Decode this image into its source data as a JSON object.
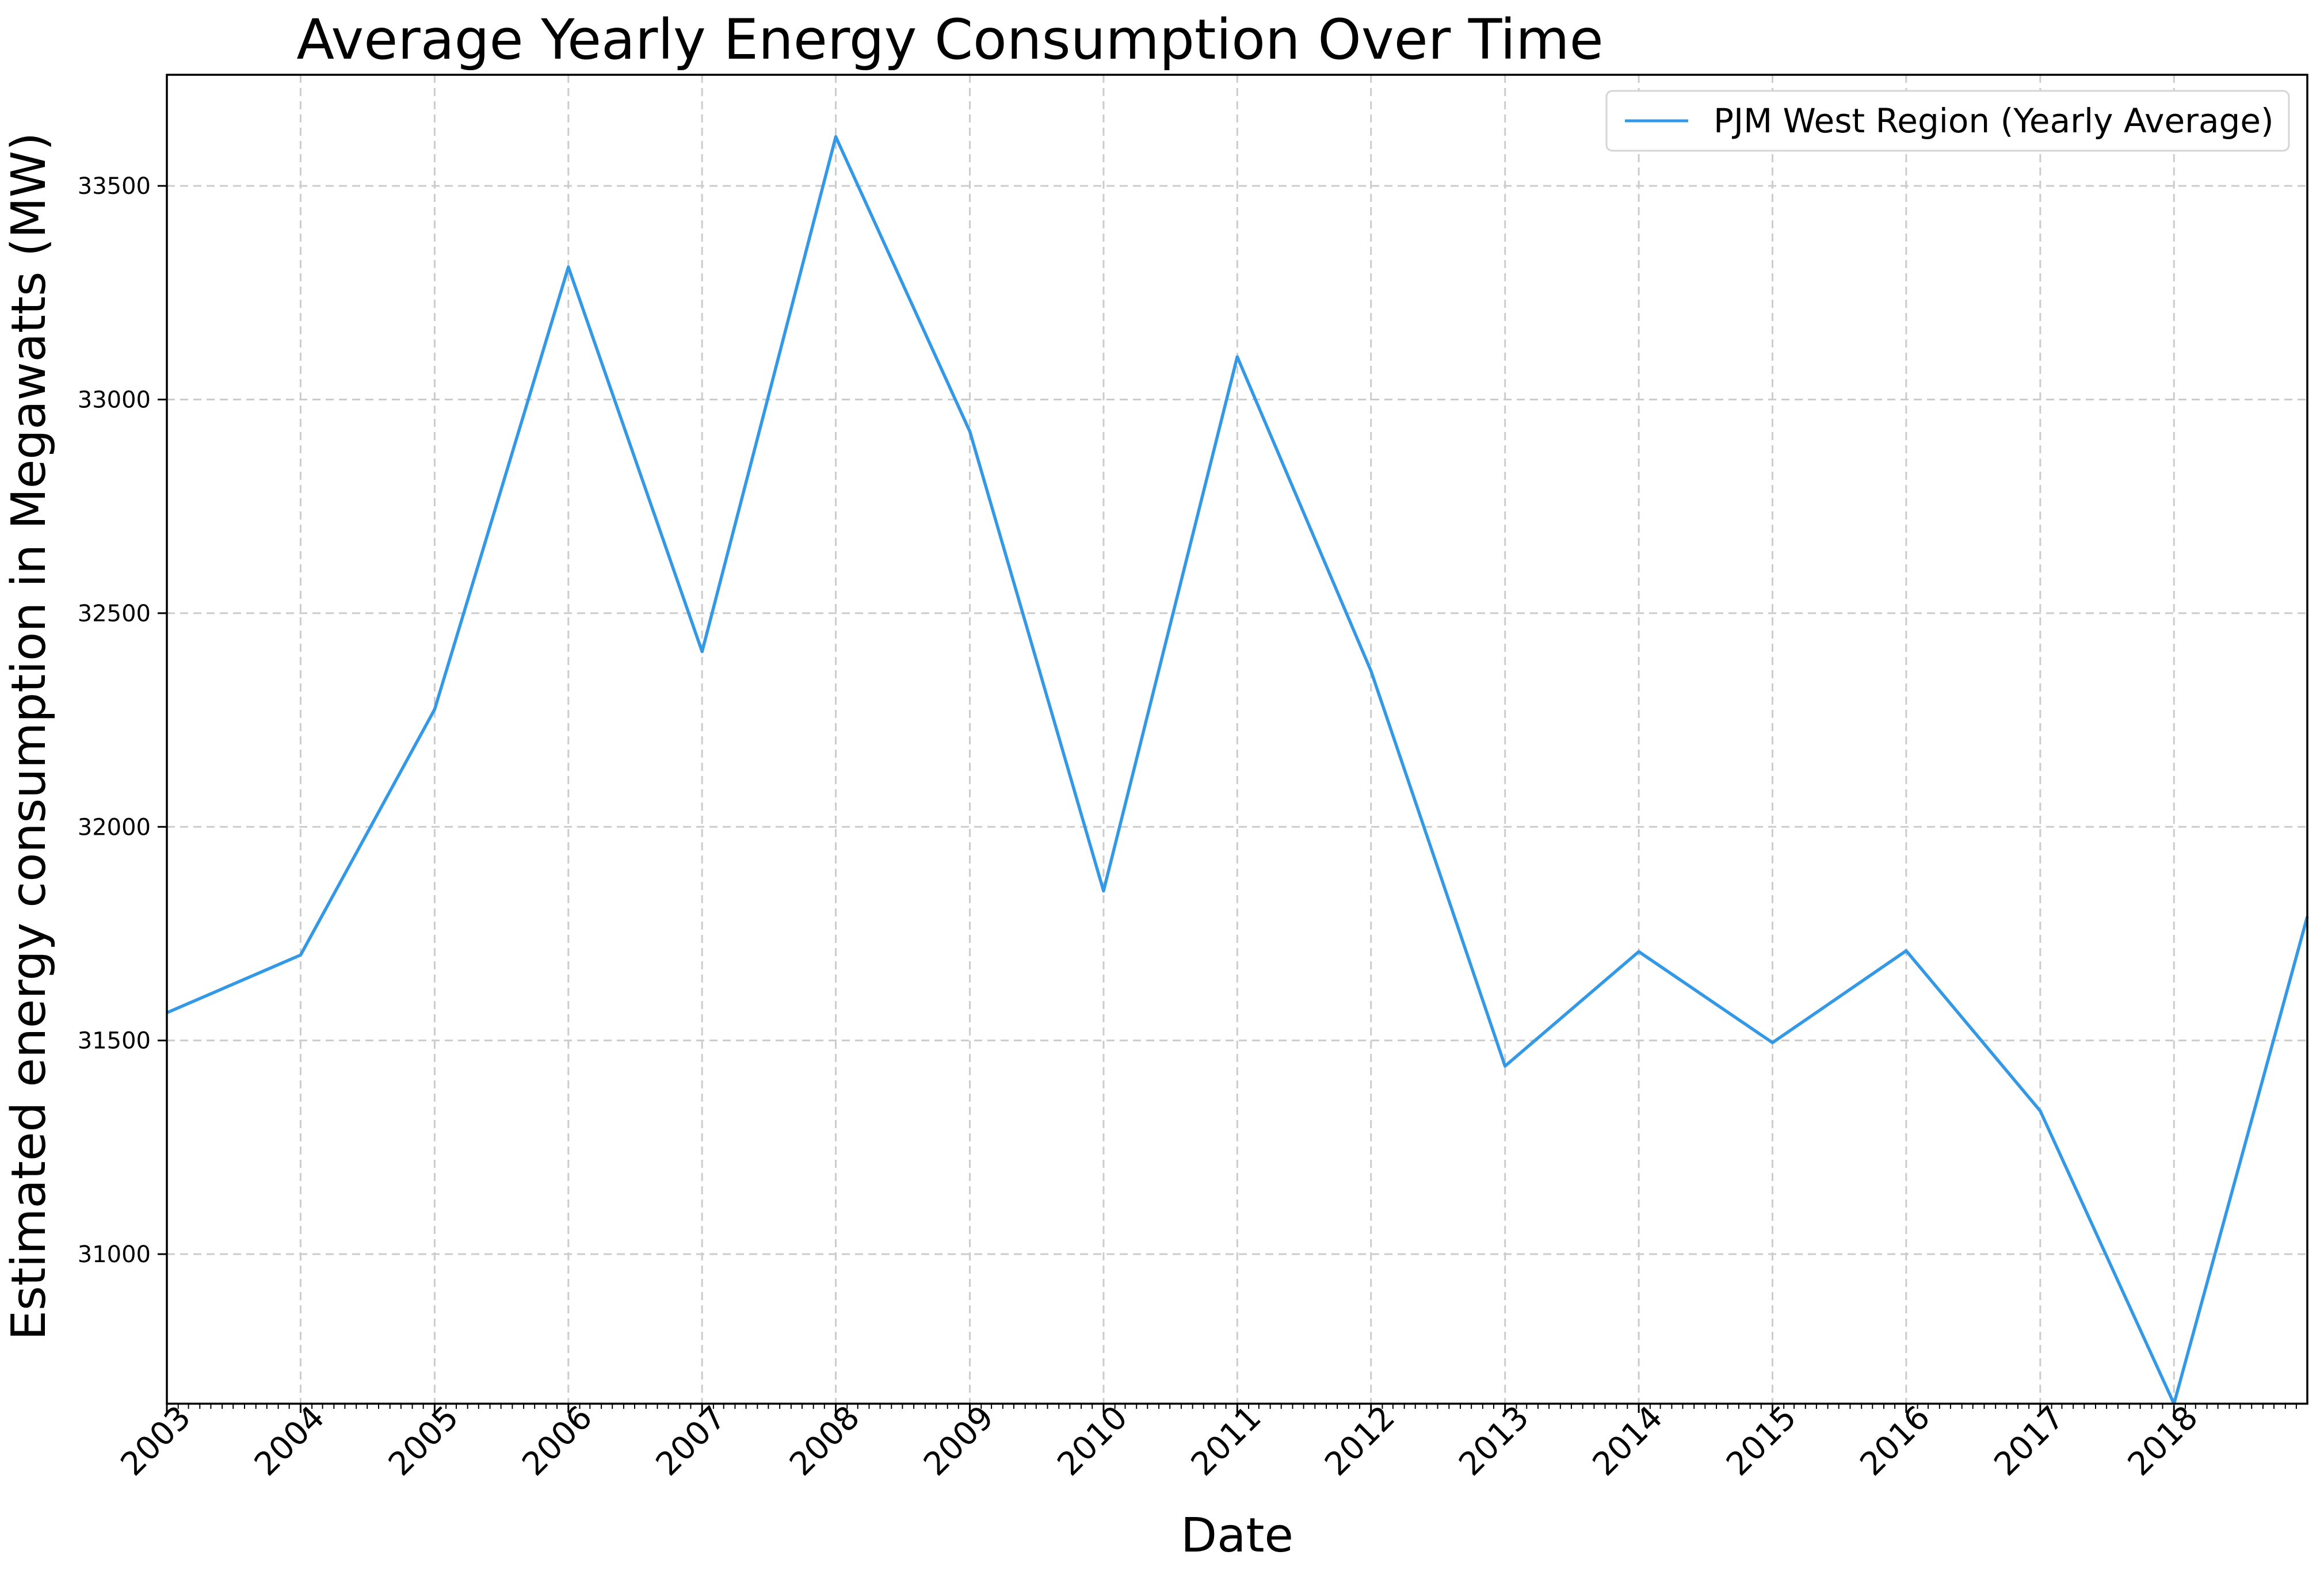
{
  "chart_data": {
    "type": "line",
    "title": "Average Yearly Energy Consumption Over Time",
    "xlabel": "Date",
    "ylabel": "Estimated energy consumption in Megawatts (MW)",
    "x_ticks": [
      "2003",
      "2004",
      "2005",
      "2006",
      "2007",
      "2008",
      "2009",
      "2010",
      "2011",
      "2012",
      "2013",
      "2014",
      "2015",
      "2016",
      "2017",
      "2018"
    ],
    "y_ticks": [
      31000,
      31500,
      32000,
      32500,
      33000,
      33500
    ],
    "xlim": [
      "2003-01-01",
      "2018-12-31"
    ],
    "ylim": [
      30650,
      33760
    ],
    "grid": true,
    "legend_position": "top-right",
    "series": [
      {
        "name": "PJM West Region (Yearly Average)",
        "color": "#3399e6",
        "x": [
          "2003-01-01",
          "2004-01-01",
          "2005-01-01",
          "2006-01-01",
          "2007-01-01",
          "2008-01-01",
          "2009-01-01",
          "2010-01-01",
          "2011-01-01",
          "2012-01-01",
          "2013-01-01",
          "2014-01-01",
          "2015-01-01",
          "2016-01-01",
          "2017-01-01",
          "2018-01-01",
          "2018-12-31"
        ],
        "values": [
          31565,
          31700,
          32275,
          33310,
          32410,
          33615,
          32925,
          31850,
          33100,
          32365,
          31440,
          31708,
          31495,
          31710,
          31335,
          30650,
          31790
        ]
      }
    ]
  }
}
